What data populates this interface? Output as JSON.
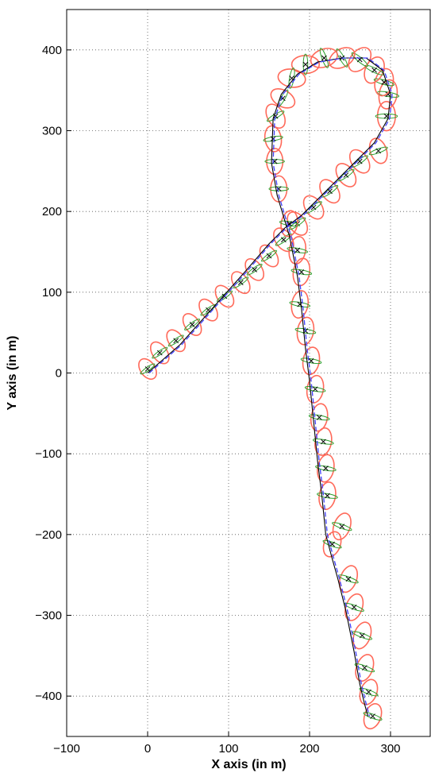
{
  "chart_data": {
    "type": "line",
    "title": "",
    "xlabel": "X axis (in m)",
    "ylabel": "Y axis (in m)",
    "xlim": [
      -100,
      350
    ],
    "ylim": [
      -450,
      450
    ],
    "xticks": [
      -100,
      0,
      100,
      200,
      300
    ],
    "yticks": [
      -400,
      -300,
      -200,
      -100,
      0,
      100,
      200,
      300,
      400
    ],
    "grid": true,
    "legend": "none",
    "colors": {
      "true_path": "#000000",
      "estimate": "#4040ff",
      "covariance_outer": "#ff6a5a",
      "covariance_inner": "#2ca02c",
      "markers": "#000000"
    },
    "series": [
      {
        "style": "solid-black",
        "x": [
          0,
          40,
          80,
          120,
          150,
          170,
          190,
          220,
          250,
          280,
          297,
          300,
          290,
          270,
          240,
          210,
          185,
          165,
          155,
          153,
          160,
          175,
          185,
          190,
          195,
          200,
          205,
          210,
          215,
          220,
          228,
          235,
          245,
          255,
          262,
          268,
          272
        ],
        "y": [
          0,
          35,
          80,
          125,
          160,
          180,
          195,
          225,
          255,
          285,
          315,
          345,
          375,
          390,
          390,
          385,
          370,
          345,
          315,
          260,
          220,
          170,
          120,
          80,
          30,
          -10,
          -60,
          -110,
          -150,
          -200,
          -230,
          -255,
          -295,
          -345,
          -385,
          -410,
          -425
        ]
      },
      {
        "style": "dashed-blue",
        "x": [
          2,
          42,
          82,
          122,
          152,
          172,
          192,
          222,
          252,
          282,
          299,
          302,
          292,
          272,
          242,
          212,
          187,
          167,
          157,
          155,
          162,
          177,
          187,
          192,
          197,
          202,
          207,
          212,
          217,
          222,
          230,
          237,
          247,
          257,
          264,
          270,
          274
        ],
        "y": [
          0,
          35,
          80,
          125,
          160,
          180,
          195,
          225,
          255,
          285,
          315,
          345,
          375,
          390,
          390,
          385,
          370,
          345,
          315,
          260,
          220,
          170,
          120,
          80,
          30,
          -10,
          -60,
          -110,
          -150,
          -200,
          -230,
          -255,
          -295,
          -345,
          -385,
          -410,
          -425
        ]
      }
    ],
    "ellipses": [
      {
        "x": 0,
        "y": 5,
        "rx": 9,
        "ry": 14,
        "angle": -35
      },
      {
        "x": 15,
        "y": 25,
        "rx": 9,
        "ry": 15,
        "angle": -35
      },
      {
        "x": 35,
        "y": 40,
        "rx": 9,
        "ry": 15,
        "angle": -35
      },
      {
        "x": 55,
        "y": 60,
        "rx": 9,
        "ry": 15,
        "angle": -35
      },
      {
        "x": 75,
        "y": 78,
        "rx": 9,
        "ry": 15,
        "angle": -35
      },
      {
        "x": 95,
        "y": 95,
        "rx": 9,
        "ry": 15,
        "angle": -35
      },
      {
        "x": 115,
        "y": 112,
        "rx": 9,
        "ry": 15,
        "angle": -35
      },
      {
        "x": 132,
        "y": 128,
        "rx": 9,
        "ry": 15,
        "angle": -35
      },
      {
        "x": 150,
        "y": 145,
        "rx": 9,
        "ry": 15,
        "angle": -35
      },
      {
        "x": 168,
        "y": 165,
        "rx": 10,
        "ry": 16,
        "angle": -35
      },
      {
        "x": 185,
        "y": 185,
        "rx": 10,
        "ry": 16,
        "angle": -35
      },
      {
        "x": 205,
        "y": 205,
        "rx": 10,
        "ry": 16,
        "angle": -35
      },
      {
        "x": 225,
        "y": 225,
        "rx": 10,
        "ry": 16,
        "angle": -35
      },
      {
        "x": 245,
        "y": 245,
        "rx": 10,
        "ry": 16,
        "angle": -35
      },
      {
        "x": 262,
        "y": 262,
        "rx": 10,
        "ry": 16,
        "angle": -35
      },
      {
        "x": 285,
        "y": 275,
        "rx": 10,
        "ry": 16,
        "angle": -20
      },
      {
        "x": 295,
        "y": 318,
        "rx": 11,
        "ry": 18,
        "angle": 0
      },
      {
        "x": 297,
        "y": 345,
        "rx": 11,
        "ry": 18,
        "angle": 10
      },
      {
        "x": 292,
        "y": 360,
        "rx": 11,
        "ry": 17,
        "angle": 15
      },
      {
        "x": 280,
        "y": 375,
        "rx": 11,
        "ry": 17,
        "angle": 25
      },
      {
        "x": 262,
        "y": 388,
        "rx": 11,
        "ry": 17,
        "angle": 40
      },
      {
        "x": 240,
        "y": 390,
        "rx": 11,
        "ry": 17,
        "angle": 60
      },
      {
        "x": 218,
        "y": 390,
        "rx": 11,
        "ry": 17,
        "angle": 70
      },
      {
        "x": 195,
        "y": 382,
        "rx": 11,
        "ry": 17,
        "angle": 90
      },
      {
        "x": 178,
        "y": 365,
        "rx": 11,
        "ry": 17,
        "angle": 100
      },
      {
        "x": 167,
        "y": 340,
        "rx": 10,
        "ry": 16,
        "angle": 120
      },
      {
        "x": 158,
        "y": 318,
        "rx": 10,
        "ry": 16,
        "angle": 150
      },
      {
        "x": 155,
        "y": 290,
        "rx": 10,
        "ry": 16,
        "angle": 170
      },
      {
        "x": 157,
        "y": 262,
        "rx": 10,
        "ry": 16,
        "angle": 180
      },
      {
        "x": 162,
        "y": 228,
        "rx": 10,
        "ry": 16,
        "angle": 180
      },
      {
        "x": 175,
        "y": 185,
        "rx": 10,
        "ry": 16,
        "angle": 190
      },
      {
        "x": 185,
        "y": 152,
        "rx": 10,
        "ry": 17,
        "angle": 190
      },
      {
        "x": 190,
        "y": 125,
        "rx": 10,
        "ry": 17,
        "angle": 190
      },
      {
        "x": 188,
        "y": 85,
        "rx": 10,
        "ry": 17,
        "angle": 190
      },
      {
        "x": 195,
        "y": 52,
        "rx": 10,
        "ry": 17,
        "angle": 190
      },
      {
        "x": 202,
        "y": 15,
        "rx": 10,
        "ry": 17,
        "angle": 190
      },
      {
        "x": 207,
        "y": -20,
        "rx": 10,
        "ry": 17,
        "angle": 190
      },
      {
        "x": 212,
        "y": -55,
        "rx": 10,
        "ry": 17,
        "angle": 190
      },
      {
        "x": 217,
        "y": -85,
        "rx": 10,
        "ry": 17,
        "angle": 190
      },
      {
        "x": 220,
        "y": -118,
        "rx": 10,
        "ry": 17,
        "angle": 190
      },
      {
        "x": 222,
        "y": -152,
        "rx": 10,
        "ry": 17,
        "angle": 190
      },
      {
        "x": 240,
        "y": -190,
        "rx": 10,
        "ry": 17,
        "angle": 200
      },
      {
        "x": 228,
        "y": -212,
        "rx": 10,
        "ry": 16,
        "angle": 200
      },
      {
        "x": 248,
        "y": -255,
        "rx": 10,
        "ry": 17,
        "angle": 200
      },
      {
        "x": 255,
        "y": -290,
        "rx": 10,
        "ry": 17,
        "angle": 200
      },
      {
        "x": 265,
        "y": -325,
        "rx": 10,
        "ry": 17,
        "angle": 200
      },
      {
        "x": 268,
        "y": -365,
        "rx": 10,
        "ry": 17,
        "angle": 200
      },
      {
        "x": 273,
        "y": -395,
        "rx": 10,
        "ry": 16,
        "angle": 200
      },
      {
        "x": 278,
        "y": -425,
        "rx": 10,
        "ry": 16,
        "angle": 200
      }
    ]
  }
}
